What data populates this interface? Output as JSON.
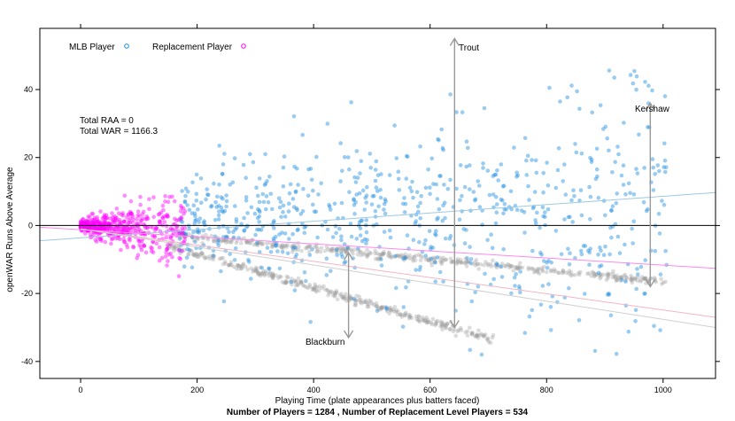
{
  "chart_data": {
    "type": "scatter",
    "title": "",
    "xlabel": "Playing Time (plate appearances plus batters faced)",
    "ylabel": "openWAR Runs Above Average",
    "caption": "Number of Players = 1284 , Number of Replacement Level Players = 534",
    "xlim": [
      -70,
      1090
    ],
    "ylim": [
      -45,
      58
    ],
    "xticks": [
      0,
      200,
      400,
      600,
      800,
      1000
    ],
    "yticks": [
      -40,
      -20,
      0,
      20,
      40
    ],
    "grid": false,
    "legend_position": "top-left",
    "legend": [
      {
        "label": "MLB Player",
        "color": "#1f8fe0"
      },
      {
        "label": "Replacement Player",
        "color": "#ff00ff"
      }
    ],
    "annotations": [
      "Total RAA = 0",
      "Total WAR = 1166.3"
    ],
    "highlighted_players": [
      {
        "name": "Trout",
        "x": 642,
        "raa": 55,
        "replacement_shadow": -30
      },
      {
        "name": "Kershaw",
        "x": 978,
        "raa": 36,
        "replacement_shadow": -18
      },
      {
        "name": "Blackburn",
        "x": 460,
        "raa": -33,
        "replacement_shadow": -8
      }
    ],
    "fit_lines": [
      {
        "color": "#9ecae1",
        "x": [
          -70,
          1090
        ],
        "y": [
          -4.5,
          9.7
        ]
      },
      {
        "color": "#ff88ee",
        "x": [
          -70,
          1090
        ],
        "y": [
          -0.5,
          -12.6
        ]
      },
      {
        "color": "#f4b6c2",
        "x": [
          0,
          1090
        ],
        "y": [
          -1,
          -27
        ]
      },
      {
        "color": "#cfcfcf",
        "x": [
          0,
          1090
        ],
        "y": [
          -1,
          -30
        ]
      }
    ],
    "replacement_trends": [
      {
        "x_range": [
          170,
          1010
        ],
        "y_at_start": -3,
        "slope": -0.0162
      },
      {
        "x_range": [
          150,
          710
        ],
        "y_at_start": -6,
        "slope": -0.0495
      }
    ],
    "series": [
      {
        "name": "MLB Player",
        "color": "#1f8fe0",
        "x_range": [
          170,
          1010
        ],
        "y_range": [
          -38,
          47
        ],
        "count": 750
      },
      {
        "name": "Replacement Player",
        "color": "#ff00ff",
        "x_range": [
          0,
          180
        ],
        "y_range": [
          -22,
          9
        ],
        "count": 534
      }
    ]
  }
}
